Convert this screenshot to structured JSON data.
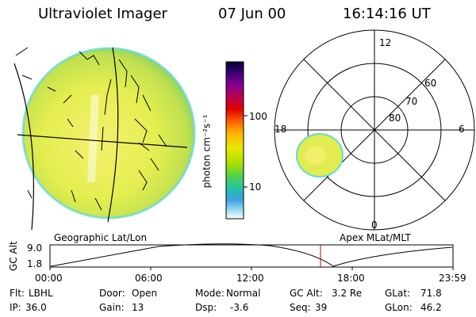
{
  "header": {
    "instrument": "Ultraviolet Imager",
    "date": "07 Jun 00",
    "time": "16:14:16 UT"
  },
  "colorbar": {
    "unit_label": "photon cm⁻²s⁻¹",
    "scale": "log",
    "tick_labels": [
      "100",
      "10"
    ],
    "colors": [
      "#000030",
      "#3a0070",
      "#8a0090",
      "#c00040",
      "#e00000",
      "#ff6000",
      "#ffb000",
      "#e8e800",
      "#a8e000",
      "#50d050",
      "#20c0b0",
      "#40a0e0",
      "#90d8f0",
      "#ffffff"
    ]
  },
  "image_panel": {
    "label": "Geographic Lat/Lon"
  },
  "polar_panel": {
    "label": "Apex MLat/MLT",
    "lat_labels": [
      "60",
      "70",
      "80"
    ],
    "mlt_labels": {
      "top": "12",
      "bottom": "0",
      "left": "18",
      "right": "6"
    }
  },
  "altitude_plot": {
    "ylabel": "GC Alt",
    "y_ticks": [
      "9.0",
      "1.8"
    ],
    "x_ticks": [
      "00:00",
      "06:00",
      "12:00",
      "18:00",
      "23:59"
    ],
    "marker_color": "#cc0000"
  },
  "status": {
    "row1": [
      {
        "label": "Flt:",
        "value": "LBHL"
      },
      {
        "label": "Door:",
        "value": "Open"
      },
      {
        "label": "Mode:",
        "value": "Normal"
      },
      {
        "label": "GC Alt:",
        "value": "3.2 Re"
      },
      {
        "label": "GLat:",
        "value": "71.8"
      }
    ],
    "row2": [
      {
        "label": "IP:",
        "value": "36.0"
      },
      {
        "label": "Gain:",
        "value": "13"
      },
      {
        "label": "Dsp:",
        "value": "-3.6"
      },
      {
        "label": "Seq:",
        "value": "39"
      },
      {
        "label": "GLon:",
        "value": "46.2"
      }
    ]
  }
}
